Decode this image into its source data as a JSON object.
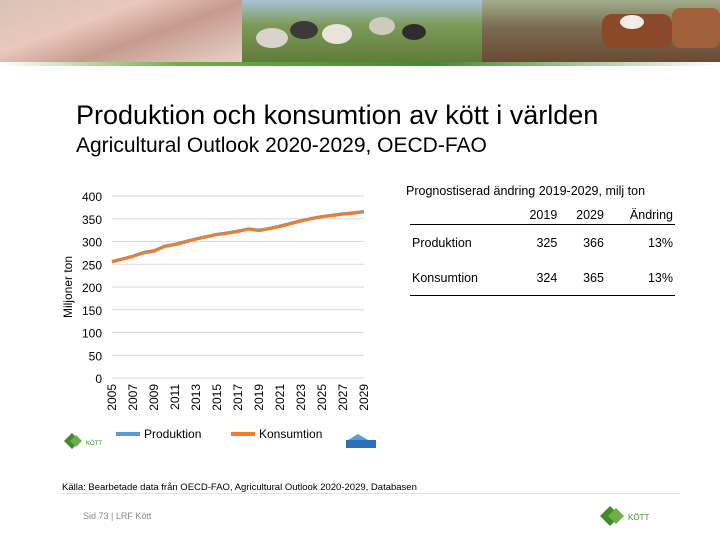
{
  "header": {
    "title": "Produktion och konsumtion av kött i världen",
    "subtitle": "Agricultural Outlook 2020-2029, OECD-FAO"
  },
  "chart_data": {
    "type": "line",
    "ylabel": "Miljoner ton",
    "ylim": [
      0,
      400
    ],
    "yticks": [
      "0",
      "50",
      "100",
      "150",
      "200",
      "250",
      "300",
      "350",
      "400"
    ],
    "x": [
      2005,
      2006,
      2007,
      2008,
      2009,
      2010,
      2011,
      2012,
      2013,
      2014,
      2015,
      2016,
      2017,
      2018,
      2019,
      2020,
      2021,
      2022,
      2023,
      2024,
      2025,
      2026,
      2027,
      2028,
      2029
    ],
    "xticks": [
      "2005",
      "2007",
      "2009",
      "2011",
      "2013",
      "2015",
      "2017",
      "2019",
      "2021",
      "2023",
      "2025",
      "2027",
      "2029"
    ],
    "series": [
      {
        "name": "Produktion",
        "color": "#5b9bd5",
        "values": [
          256,
          262,
          268,
          276,
          280,
          290,
          294,
          300,
          306,
          311,
          316,
          319,
          323,
          328,
          325,
          329,
          334,
          340,
          346,
          351,
          355,
          358,
          361,
          363,
          366
        ]
      },
      {
        "name": "Konsumtion",
        "color": "#ed7d31",
        "values": [
          255,
          261,
          267,
          275,
          279,
          289,
          293,
          299,
          305,
          310,
          315,
          318,
          322,
          327,
          324,
          328,
          333,
          339,
          345,
          350,
          354,
          357,
          360,
          362,
          365
        ]
      }
    ],
    "grid": true,
    "legend_position": "bottom"
  },
  "table": {
    "title": "Prognostiserad ändring 2019-2029, milj ton",
    "headers": [
      "",
      "2019",
      "2029",
      "Ändring"
    ],
    "rows": [
      {
        "label": "Produktion",
        "y2019": "325",
        "y2029": "366",
        "change": "13%"
      },
      {
        "label": "Konsumtion",
        "y2019": "324",
        "y2029": "365",
        "change": "13%"
      }
    ]
  },
  "source": "Källa: Bearbetade data från OECD-FAO, Agricultural Outlook 2020-2029, Databasen",
  "footer": "Sid 73 | LRF Kött",
  "logos": {
    "kott": "KÖTT",
    "small_logo": "KÖTT"
  },
  "colors": {
    "produktion": "#5b9bd5",
    "konsumtion": "#ed7d31",
    "grid": "#d9d9d9",
    "green": "#3f8c2f"
  },
  "banner_icons": [
    "pigs-photo-icon",
    "sheep-photo-icon",
    "cattle-photo-icon"
  ]
}
